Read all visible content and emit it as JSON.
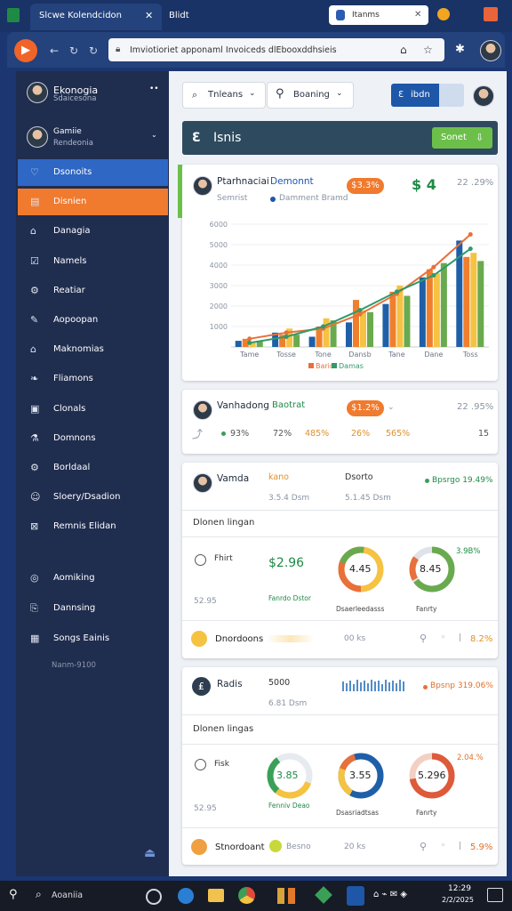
{
  "browser": {
    "tab": "Slcwe Kolendcidon",
    "tab2": "Blidt",
    "search": "Itanms",
    "url": "Imviotioriet apponaml Invoiceds dlEbooxddhsieis"
  },
  "sidebar": {
    "profiles": [
      {
        "name": "Ekonogia",
        "sub": "Sdaicesona"
      },
      {
        "name": "Gamiie",
        "sub": "Rendeonia"
      }
    ],
    "menu": [
      "Dsonoits",
      "Disnien",
      "Danagia",
      "Namels",
      "Reatiar",
      "Aopoopan",
      "Maknomias",
      "Fliamons",
      "Clonals",
      "Domnons",
      "Borldaal",
      "Sloery/Dsadion",
      "Remnis Elidan",
      "Aomiking",
      "Dannsing",
      "Songs Eainis"
    ],
    "footer": "Nanm-9100"
  },
  "toolbar": {
    "filter1": "Tnleans",
    "filter2": "Boaning",
    "button": "ibdn"
  },
  "header": {
    "title": "Isnis",
    "button": "Sonet"
  },
  "card1": {
    "title": "Ptarhnaciai",
    "title2": "Demonnt",
    "sub": "Semrist",
    "sub2": "Damment Bramd",
    "pill": "$3.3%",
    "big": "$ 4",
    "right": "22 .29%",
    "chart": {
      "type": "bar",
      "categories": [
        "Tame",
        "Tosse",
        "Tone",
        "Dansb",
        "Tane",
        "Dane",
        "Toss"
      ],
      "ylim": [
        0,
        6000
      ],
      "yticks": [
        1000,
        2000,
        3000,
        4000,
        5000,
        6000
      ],
      "series": [
        {
          "type": "bar",
          "color": "#1f5fa8",
          "values": [
            300,
            700,
            500,
            1200,
            2100,
            3400,
            5200
          ]
        },
        {
          "type": "bar",
          "color": "#f07f2d",
          "values": [
            400,
            600,
            1000,
            2300,
            2700,
            3800,
            4400
          ]
        },
        {
          "type": "bar",
          "color": "#f5c242",
          "values": [
            200,
            900,
            1400,
            1800,
            3000,
            3600,
            4600
          ]
        },
        {
          "type": "bar",
          "color": "#6aaa4f",
          "values": [
            300,
            600,
            1300,
            1700,
            2500,
            4100,
            4200
          ]
        },
        {
          "type": "line",
          "name": "Bario",
          "color": "#e8703a",
          "values": [
            400,
            700,
            900,
            1600,
            2600,
            3900,
            5500
          ]
        },
        {
          "type": "line",
          "name": "Damas",
          "color": "#2f9a6a",
          "values": [
            200,
            500,
            1000,
            1800,
            2700,
            3500,
            4800
          ]
        }
      ]
    }
  },
  "card2": {
    "title": "Vanhadong",
    "title2": "Baotrat",
    "pill": "$1.2%",
    "right": "22 .95%",
    "stats": [
      "93%",
      "72%",
      "485%",
      "26%",
      "565%",
      "15"
    ]
  },
  "card3": {
    "title": "Vamda",
    "c1": "kano",
    "c1sub": "3.5.4 Dsm",
    "c2": "Dsorto",
    "c2sub": "5.1.45 Dsm",
    "trend": "Bpsrgo 19.49%",
    "section": "Dlonen lingan",
    "label": "Fhirt",
    "big": "$2.96",
    "bigsub": "Fanrdo Dstor",
    "d1": "4.45",
    "d2": "8.45",
    "side": "3.9B%",
    "foot1": "52.95",
    "foot2": "Dsaerleedasss",
    "foot3": "Fanrty",
    "row": "Dnordoons",
    "rowmid": "00 ks",
    "rowend": "8.2%"
  },
  "card4": {
    "title": "Radis",
    "c1": "5000",
    "c1sub": "6.81 Dsm",
    "trend": "Bpsnp 319.06%",
    "section": "Dlonen lingas",
    "label": "Fisk",
    "d1": "3.85",
    "d2": "3.55",
    "d3": "5.296",
    "side": "2.04.%",
    "foot1": "52.95",
    "foot2": "Fenniv Deao",
    "foot3": "Dsasriadtsas",
    "foot4": "Fanrty",
    "row": "Stnordoant",
    "row2": "Besno",
    "rowmid": "20 ks",
    "rowend": "5.9%"
  },
  "taskbar": {
    "search": "Aoaniia",
    "time": "12:29",
    "date": "2/2/2025"
  }
}
